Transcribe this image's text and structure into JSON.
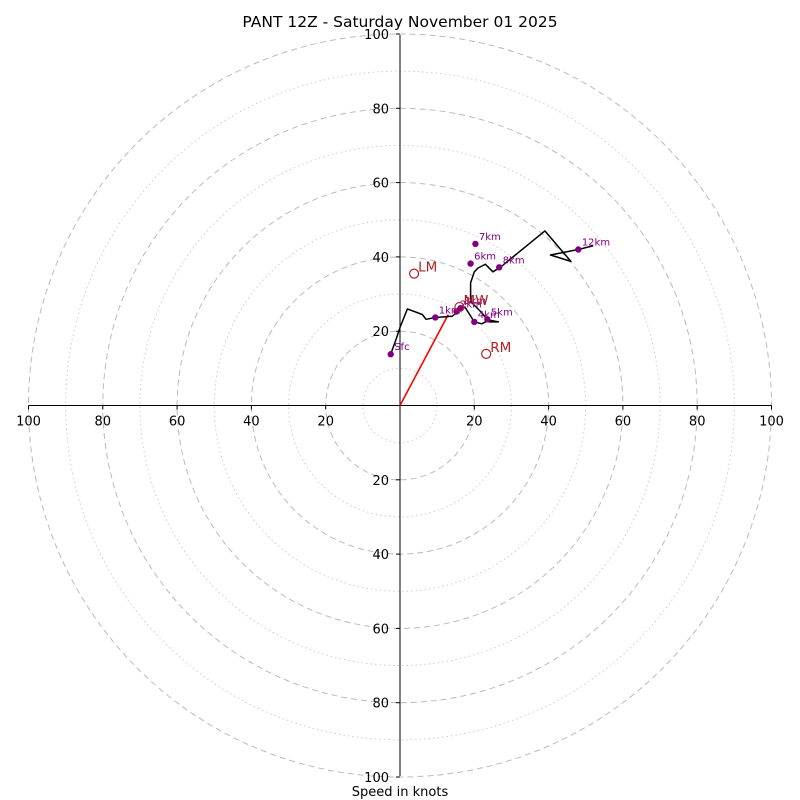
{
  "chart_data": {
    "type": "hodograph",
    "title": "PANT 12Z - Saturday November 01 2025",
    "xlabel": "Speed in knots",
    "unit": "knots",
    "range": [
      -100,
      100
    ],
    "major_rings": [
      20,
      40,
      60,
      80,
      100
    ],
    "minor_rings": [
      10,
      30,
      50,
      70,
      90
    ],
    "tick_labels": [
      "100",
      "80",
      "60",
      "40",
      "20",
      "20",
      "40",
      "60",
      "80",
      "100"
    ],
    "tick_labels_y_up": [
      "20",
      "40",
      "60",
      "80",
      "100"
    ],
    "tick_labels_y_down": [
      "20",
      "40",
      "60",
      "80",
      "100"
    ],
    "colors": {
      "trace": "#000000",
      "markers": "#800080",
      "motion": "#b22222",
      "shear_vector": "#ff0000",
      "rings": "#bbbbbb"
    },
    "trace": [
      [
        -2.5,
        13.8
      ],
      [
        -1,
        18
      ],
      [
        0,
        21
      ],
      [
        2,
        26
      ],
      [
        6,
        24.5
      ],
      [
        7,
        23.2
      ],
      [
        9.5,
        23.7
      ],
      [
        14,
        24
      ],
      [
        17.5,
        26.5
      ],
      [
        20,
        22.5
      ],
      [
        22,
        22
      ],
      [
        24,
        23
      ],
      [
        26.5,
        22.5
      ],
      [
        24,
        22.5
      ],
      [
        22,
        25
      ],
      [
        19,
        28
      ],
      [
        19,
        33
      ],
      [
        20,
        36
      ],
      [
        21,
        37
      ],
      [
        23,
        38
      ],
      [
        25,
        36
      ],
      [
        27,
        37.2
      ],
      [
        39,
        47
      ],
      [
        46,
        38.8
      ],
      [
        40.5,
        40.5
      ],
      [
        48,
        42
      ],
      [
        52,
        43
      ]
    ],
    "height_markers": [
      {
        "label": "Sfc",
        "u": -2.5,
        "v": 13.8
      },
      {
        "label": "1km",
        "u": 9.5,
        "v": 23.7
      },
      {
        "label": "2km",
        "u": 15.2,
        "v": 25.3
      },
      {
        "label": "3km",
        "u": 16.3,
        "v": 26.2
      },
      {
        "label": "4km",
        "u": 20,
        "v": 22.5
      },
      {
        "label": "5km",
        "u": 23.5,
        "v": 23.2
      },
      {
        "label": "6km",
        "u": 19,
        "v": 38.2
      },
      {
        "label": "7km",
        "u": 20.3,
        "v": 43.5
      },
      {
        "label": "8km",
        "u": 26.7,
        "v": 37.2
      },
      {
        "label": "12km",
        "u": 48,
        "v": 42
      }
    ],
    "storm_motion": [
      {
        "label": "LM",
        "u": 3.8,
        "v": 35.5
      },
      {
        "label": "MW",
        "u": 16,
        "v": 26.5
      },
      {
        "label": "RM",
        "u": 23.2,
        "v": 13.9
      }
    ],
    "shear_vector": {
      "from": [
        0,
        0
      ],
      "to": [
        13,
        24.5
      ]
    }
  }
}
